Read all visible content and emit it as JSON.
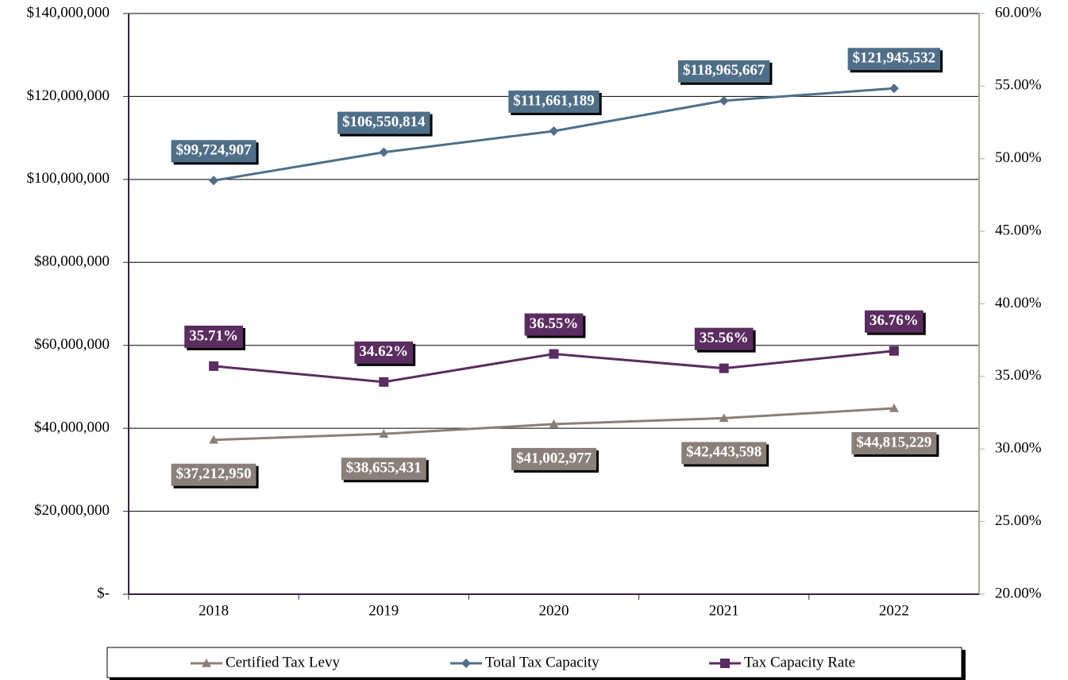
{
  "chart_data": {
    "type": "line",
    "categories": [
      "2018",
      "2019",
      "2020",
      "2021",
      "2022"
    ],
    "series": [
      {
        "name": "Certified Tax Levy",
        "color": "#8a8079",
        "marker": "triangle",
        "label_position": "below",
        "values": [
          37212950,
          38655431,
          41002977,
          42443598,
          44815229
        ],
        "value_labels": [
          "$37,212,950",
          "$38,655,431",
          "$41,002,977",
          "$42,443,598",
          "$44,815,229"
        ]
      },
      {
        "name": "Total Tax Capacity",
        "color": "#4f6f89",
        "marker": "diamond",
        "label_position": "above",
        "values": [
          99724907,
          106550814,
          111661189,
          118965667,
          121945532
        ],
        "value_labels": [
          "$99,724,907",
          "$106,550,814",
          "$111,661,189",
          "$118,965,667",
          "$121,945,532"
        ]
      },
      {
        "name": "Tax Capacity Rate",
        "color": "#5b2c60",
        "marker": "square",
        "axis": "y2",
        "label_position": "above",
        "values": [
          35.71,
          34.62,
          36.55,
          35.56,
          36.76
        ],
        "value_labels": [
          "35.71%",
          "34.62%",
          "36.55%",
          "35.56%",
          "36.76%"
        ]
      }
    ],
    "ylim": [
      0,
      140000000
    ],
    "yticks": [
      {
        "value": 0,
        "label": "$-"
      },
      {
        "value": 20000000,
        "label": "$20,000,000"
      },
      {
        "value": 40000000,
        "label": "$40,000,000"
      },
      {
        "value": 60000000,
        "label": "$60,000,000"
      },
      {
        "value": 80000000,
        "label": "$80,000,000"
      },
      {
        "value": 100000000,
        "label": "$100,000,000"
      },
      {
        "value": 120000000,
        "label": "$120,000,000"
      },
      {
        "value": 140000000,
        "label": "$140,000,000"
      }
    ],
    "y2lim": [
      20,
      60
    ],
    "y2ticks": [
      {
        "value": 20,
        "label": "20.00%"
      },
      {
        "value": 25,
        "label": "25.00%"
      },
      {
        "value": 30,
        "label": "30.00%"
      },
      {
        "value": 35,
        "label": "35.00%"
      },
      {
        "value": 40,
        "label": "40.00%"
      },
      {
        "value": 45,
        "label": "45.00%"
      },
      {
        "value": 50,
        "label": "50.00%"
      },
      {
        "value": 55,
        "label": "55.00%"
      },
      {
        "value": 60,
        "label": "60.00%"
      }
    ],
    "grid": true,
    "legend": "bottom"
  }
}
